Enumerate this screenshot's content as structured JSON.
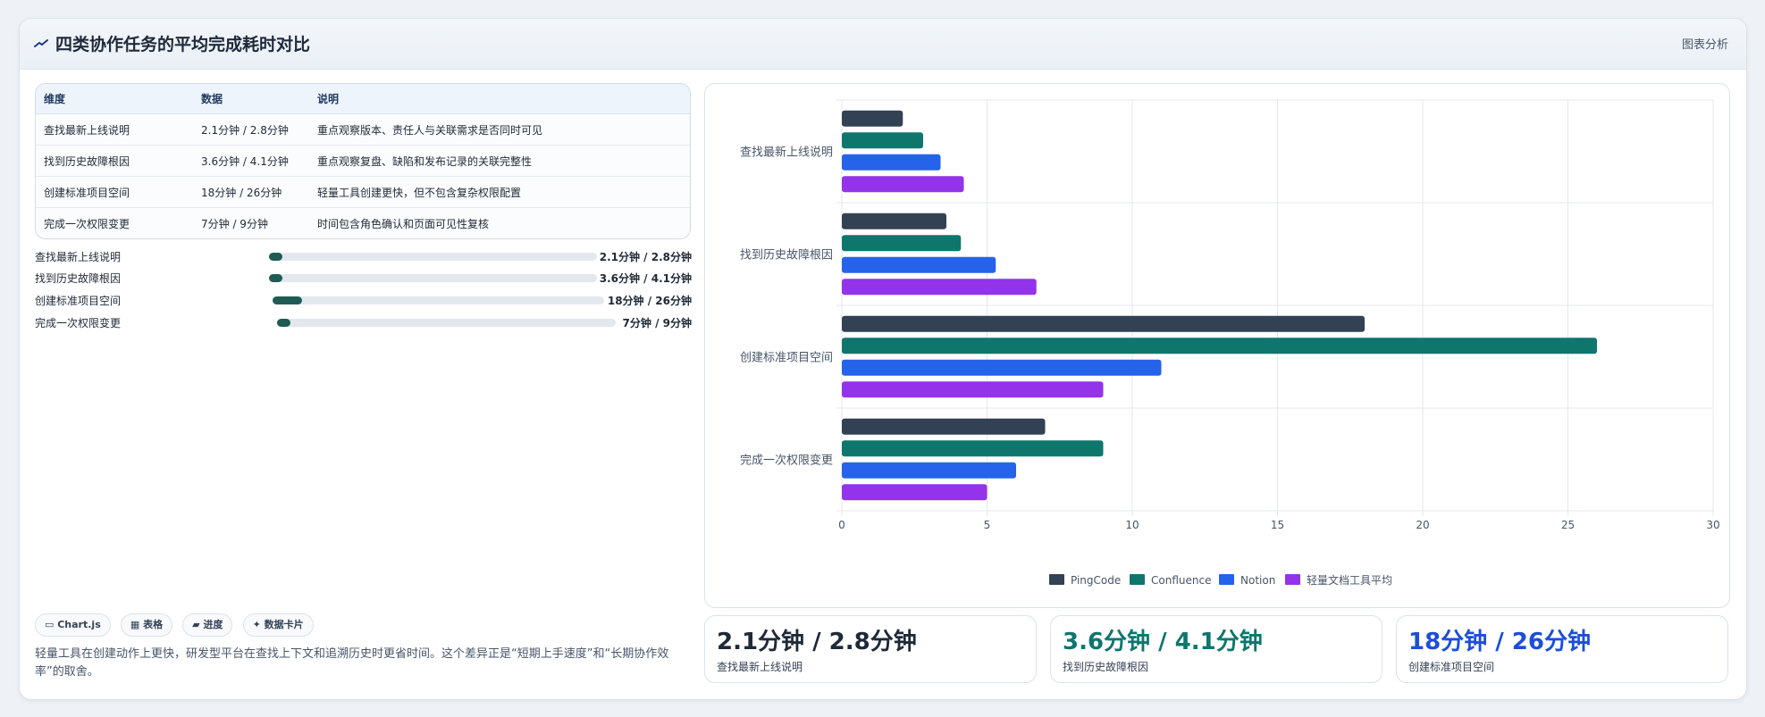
{
  "header": {
    "title": "四类协作任务的平均完成耗时对比",
    "action": "图表分析"
  },
  "table": {
    "headers": [
      "维度",
      "数据",
      "说明"
    ],
    "rows": [
      {
        "dim": "查找最新上线说明",
        "data": "2.1分钟 / 2.8分钟",
        "note": "重点观察版本、责任人与关联需求是否同时可见"
      },
      {
        "dim": "找到历史故障根因",
        "data": "3.6分钟 / 4.1分钟",
        "note": "重点观察复盘、缺陷和发布记录的关联完整性"
      },
      {
        "dim": "创建标准项目空间",
        "data": "18分钟 / 26分钟",
        "note": "轻量工具创建更快，但不包含复杂权限配置"
      },
      {
        "dim": "完成一次权限变更",
        "data": "7分钟 / 9分钟",
        "note": "时间包含角色确认和页面可见性复核"
      }
    ]
  },
  "progress": [
    {
      "label": "查找最新上线说明",
      "value": "2.1分钟 / 2.8分钟",
      "fraction": 0.04
    },
    {
      "label": "找到历史故障根因",
      "value": "3.6分钟 / 4.1分钟",
      "fraction": 0.04
    },
    {
      "label": "创建标准项目空间",
      "value": "18分钟 / 26分钟",
      "fraction": 0.09
    },
    {
      "label": "完成一次权限变更",
      "value": "7分钟 / 9分钟",
      "fraction": 0.04
    }
  ],
  "chips": [
    "Chart.js",
    "表格",
    "进度",
    "数据卡片"
  ],
  "summary": "轻量工具在创建动作上更快，研发型平台在查找上下文和追溯历史时更省时间。这个差异正是“短期上手速度”和“长期协作效率”的取舍。",
  "stats": [
    {
      "value": "2.1分钟 / 2.8分钟",
      "label": "查找最新上线说明",
      "color": "#1f2937"
    },
    {
      "value": "3.6分钟 / 4.1分钟",
      "label": "找到历史故障根因",
      "color": "#0f766e"
    },
    {
      "value": "18分钟 / 26分钟",
      "label": "创建标准项目空间",
      "color": "#1d4ed8"
    }
  ],
  "chart_data": {
    "type": "bar",
    "orientation": "horizontal",
    "categories": [
      "查找最新上线说明",
      "找到历史故障根因",
      "创建标准项目空间",
      "完成一次权限变更"
    ],
    "series": [
      {
        "name": "PingCode",
        "values": [
          2.1,
          3.6,
          18,
          7
        ],
        "color": "#334155"
      },
      {
        "name": "Confluence",
        "values": [
          2.8,
          4.1,
          26,
          9
        ],
        "color": "#0f766e"
      },
      {
        "name": "Notion",
        "values": [
          3.4,
          5.3,
          11,
          6
        ],
        "color": "#2563eb"
      },
      {
        "name": "轻量文档工具平均",
        "values": [
          4.2,
          6.7,
          9,
          5
        ],
        "color": "#9333ea"
      }
    ],
    "xlim": [
      0,
      30
    ],
    "xticks": [
      "0",
      "5",
      "10",
      "15",
      "20",
      "25",
      "30"
    ],
    "grid": true,
    "legend": "bottom"
  }
}
